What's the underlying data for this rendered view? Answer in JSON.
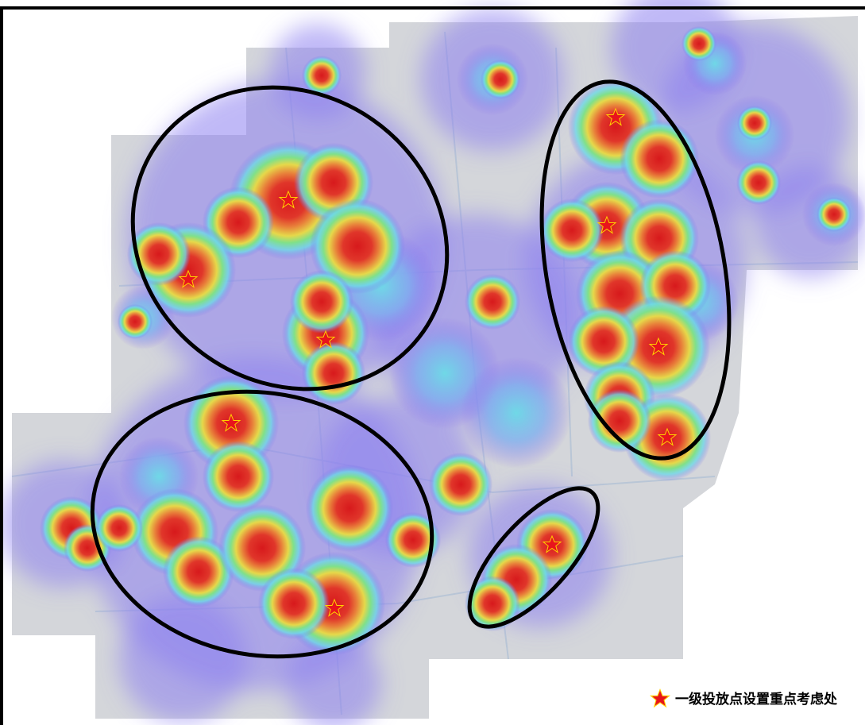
{
  "legend": {
    "label": "一级投放点设置重点考虑处"
  }
}
